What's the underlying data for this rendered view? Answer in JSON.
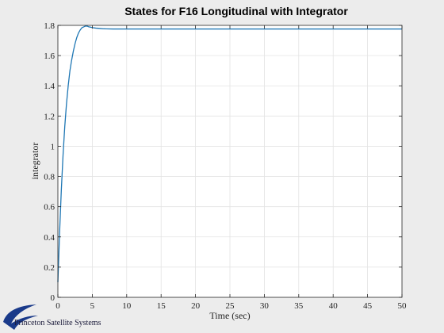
{
  "chart_data": {
    "type": "line",
    "title": "States for F16 Longitudinal with Integrator",
    "xlabel": "Time (sec)",
    "ylabel": "integrator",
    "xlim": [
      0,
      50
    ],
    "ylim": [
      0,
      1.8
    ],
    "xticks": [
      0,
      5,
      10,
      15,
      20,
      25,
      30,
      35,
      40,
      45,
      50
    ],
    "yticks": [
      0,
      0.2,
      0.4,
      0.6,
      0.8,
      1,
      1.2,
      1.4,
      1.6,
      1.8
    ],
    "grid": true,
    "series": [
      {
        "color": "#1f77b4",
        "x": [
          0,
          0.25,
          0.5,
          0.75,
          1,
          1.25,
          1.5,
          1.75,
          2,
          2.25,
          2.5,
          2.75,
          3,
          3.25,
          3.5,
          3.75,
          4,
          4.25,
          4.5,
          4.75,
          5,
          5.5,
          6,
          6.5,
          7,
          8,
          9,
          10,
          12,
          15,
          20,
          25,
          30,
          35,
          40,
          45,
          50
        ],
        "y": [
          0.1,
          0.43,
          0.71,
          0.94,
          1.13,
          1.28,
          1.4,
          1.5,
          1.57,
          1.63,
          1.68,
          1.72,
          1.75,
          1.77,
          1.785,
          1.79,
          1.795,
          1.795,
          1.79,
          1.788,
          1.785,
          1.782,
          1.78,
          1.778,
          1.777,
          1.776,
          1.776,
          1.776,
          1.776,
          1.776,
          1.776,
          1.776,
          1.776,
          1.776,
          1.776,
          1.776,
          1.776
        ]
      }
    ]
  },
  "logo": {
    "text": "Princeton Satellite Systems",
    "color": "#1a3a8a"
  }
}
